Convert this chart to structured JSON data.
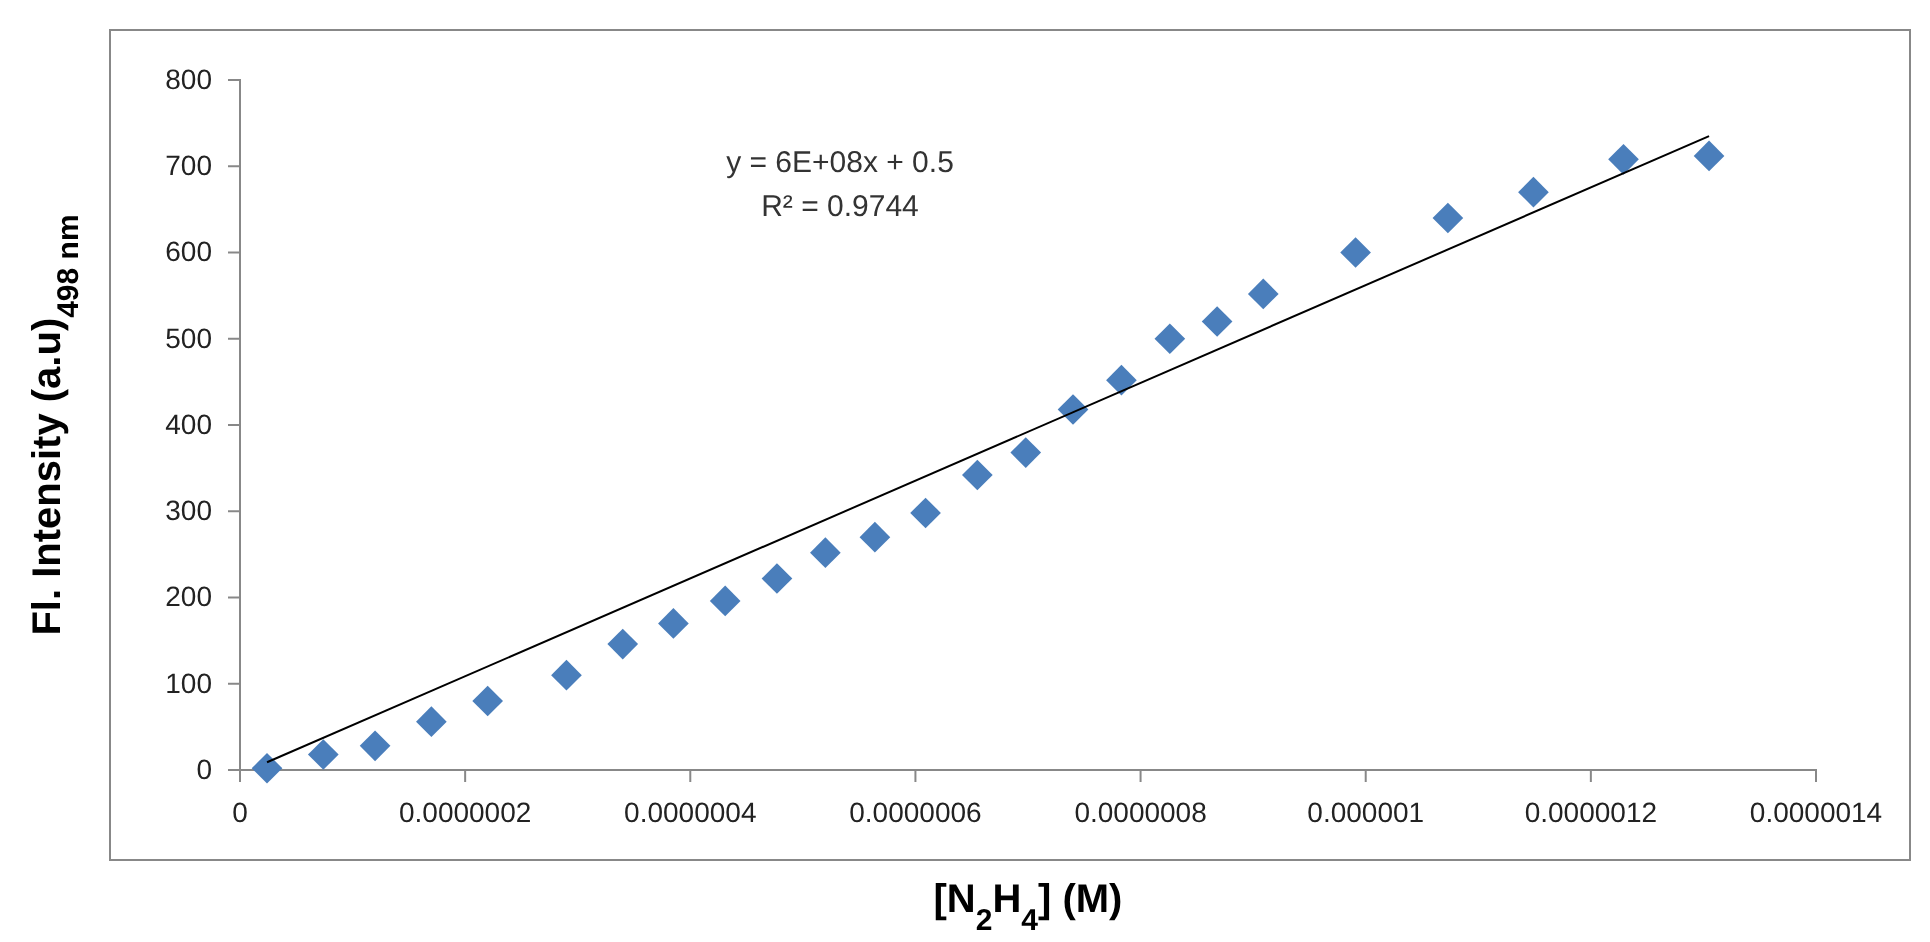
{
  "chart_data": {
    "type": "scatter",
    "xlabel": "[N$_{2}$H$_{4}$] (M)",
    "ylabel": "Fl. Intensity (a.u)$_{498 nm}$",
    "annotations": [
      "y = 6E+08x + 0.5",
      "R² = 0.9744"
    ],
    "xlim": [
      0,
      1.4e-06
    ],
    "xticks": [
      0,
      {
        "value": 2e-07,
        "label": "0.0000002"
      },
      {
        "value": 4e-07,
        "label": "0.0000004"
      },
      {
        "value": 6e-07,
        "label": "0.0000006"
      },
      {
        "value": 8e-07,
        "label": "0.0000008"
      },
      {
        "value": 1e-06,
        "label": "0.000001"
      },
      {
        "value": 1.2e-06,
        "label": "0.0000012"
      },
      {
        "value": 1.4e-06,
        "label": "0.0000014"
      }
    ],
    "ylim": [
      0,
      800
    ],
    "yticks": [
      0,
      100,
      200,
      300,
      400,
      500,
      600,
      700,
      800
    ],
    "grid": false,
    "marker": "diamond",
    "series": [
      {
        "color": "#4a7ebb",
        "x": [
          2.4e-08,
          7.4e-08,
          1.2e-07,
          1.7e-07,
          2.2e-07,
          2.9e-07,
          3.4e-07,
          3.85e-07,
          4.31e-07,
          4.77e-07,
          5.2e-07,
          5.64e-07,
          6.09e-07,
          6.55e-07,
          6.98e-07,
          7.4e-07,
          7.83e-07,
          8.26e-07,
          8.68e-07,
          9.09e-07,
          9.91e-07,
          1.073e-06,
          1.149e-06,
          1.229e-06,
          1.305e-06
        ],
        "values": [
          2,
          18,
          28,
          56,
          80,
          110,
          146,
          170,
          196,
          222,
          252,
          270,
          298,
          342,
          368,
          418,
          452,
          500,
          520,
          552,
          600,
          640,
          670,
          708,
          712
        ]
      },
      {
        "type": "line",
        "color": "#000000",
        "marker": "none",
        "x": [
          2.4e-08,
          1.305e-06
        ],
        "values": [
          9,
          735
        ]
      }
    ]
  }
}
